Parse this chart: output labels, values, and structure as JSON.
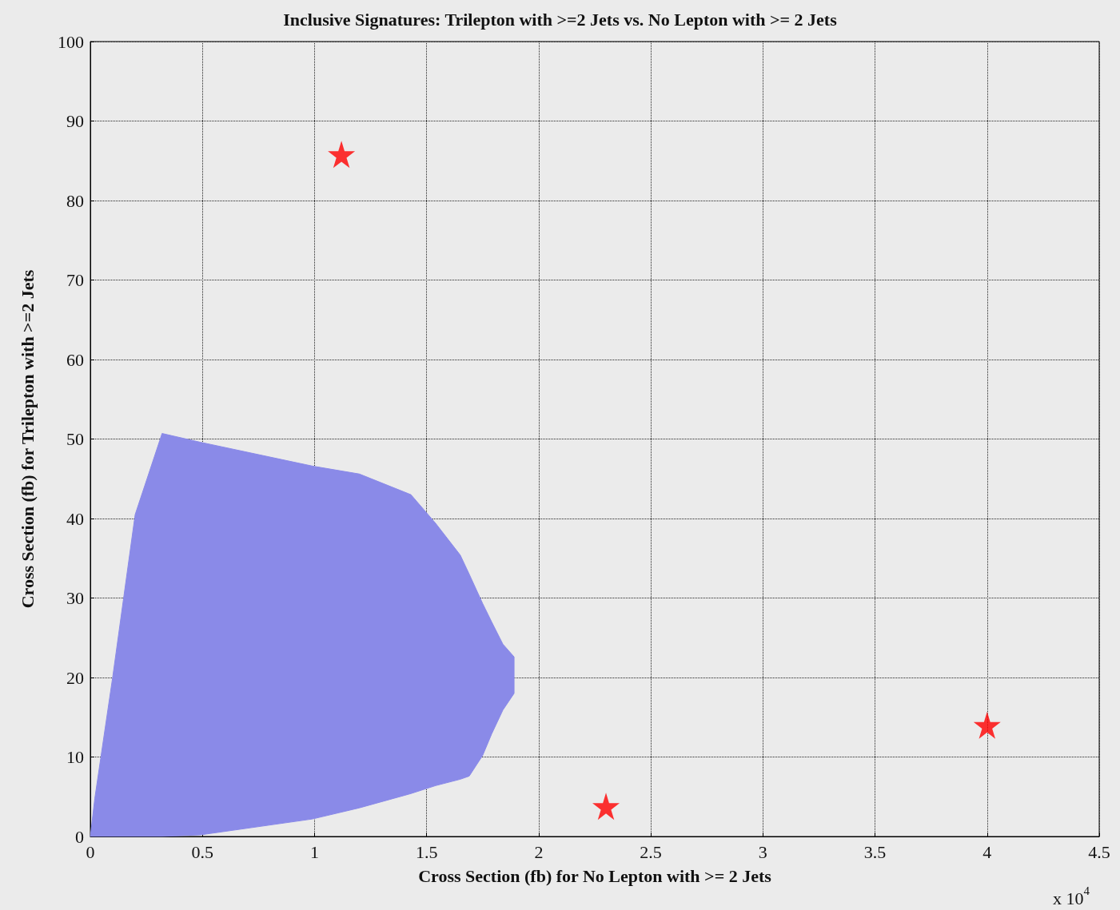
{
  "chart_data": {
    "type": "scatter",
    "title": "Inclusive Signatures: Trilepton with >=2 Jets vs. No Lepton with >= 2 Jets",
    "xlabel": "Cross Section (fb) for No Lepton with >= 2 Jets",
    "ylabel": "Cross Section (fb) for Trilepton with >=2 Jets",
    "annotations": [
      "x 10$^{4}$"
    ],
    "series": [
      {
        "type": "area",
        "color": "#8a8ae8",
        "x": [
          0,
          0.02,
          0.1,
          0.15,
          0.2,
          0.32,
          0.49,
          0.99,
          1.2,
          1.43,
          1.54,
          1.65,
          1.69,
          1.75,
          1.79,
          1.84,
          1.89,
          1.89,
          1.84,
          1.79,
          1.75,
          1.69,
          1.65,
          1.54,
          1.43,
          1.2,
          0.99,
          0.49,
          0.32,
          0
        ],
        "values": [
          0,
          4.8,
          20.1,
          30.3,
          40.5,
          50.7,
          49.6,
          46.6,
          45.6,
          43.0,
          39.4,
          35.4,
          33.0,
          29.3,
          27.0,
          24.2,
          22.6,
          18.0,
          15.9,
          12.9,
          10.2,
          7.6,
          7.2,
          6.4,
          5.4,
          3.6,
          2.2,
          0.2,
          0,
          0
        ]
      },
      {
        "color": "#ff0000",
        "marker": "star",
        "x": [
          1.12,
          2.3,
          4.0
        ],
        "values": [
          85.8,
          3.8,
          14.0
        ]
      }
    ],
    "xlim": [
      0,
      4.5
    ],
    "xticks": [
      0,
      0.5,
      1,
      1.5,
      2,
      2.5,
      3,
      3.5,
      4,
      4.5
    ],
    "ylim": [
      0,
      100
    ],
    "yticks": [
      0,
      10,
      20,
      30,
      40,
      50,
      60,
      70,
      80,
      90,
      100
    ],
    "grid": true
  }
}
